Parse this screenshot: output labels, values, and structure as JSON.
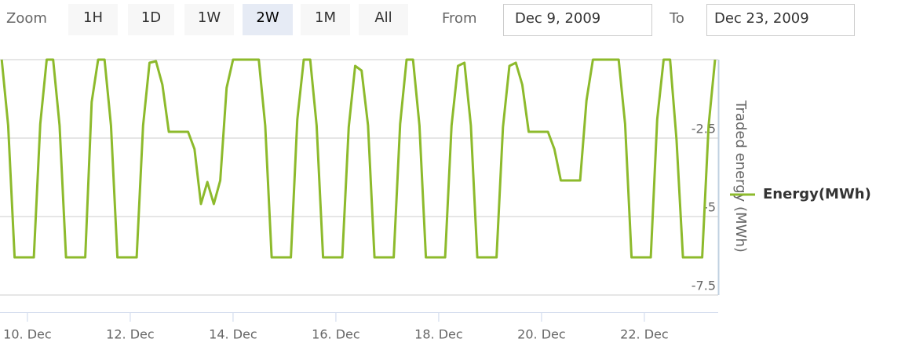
{
  "range_selector": {
    "label": "Zoom",
    "buttons": [
      "1H",
      "1D",
      "1W",
      "2W",
      "1M",
      "All"
    ],
    "selected": "2W",
    "from_label": "From",
    "from_value": "Dec 9, 2009",
    "to_label": "To",
    "to_value": "Dec 23, 2009"
  },
  "chart_data": {
    "type": "line",
    "x": [
      "2009-12-09T12:00",
      "2009-12-09T15:00",
      "2009-12-09T18:00",
      "2009-12-10T03:00",
      "2009-12-10T06:00",
      "2009-12-10T09:00",
      "2009-12-10T12:00",
      "2009-12-10T15:00",
      "2009-12-10T18:00",
      "2009-12-11T03:00",
      "2009-12-11T06:00",
      "2009-12-11T09:00",
      "2009-12-11T12:00",
      "2009-12-11T15:00",
      "2009-12-11T18:00",
      "2009-12-12T03:00",
      "2009-12-12T06:00",
      "2009-12-12T09:00",
      "2009-12-12T12:00",
      "2009-12-12T15:00",
      "2009-12-12T18:00",
      "2009-12-13T03:00",
      "2009-12-13T06:00",
      "2009-12-13T09:00",
      "2009-12-13T12:00",
      "2009-12-13T15:00",
      "2009-12-13T18:00",
      "2009-12-13T21:00",
      "2009-12-14T00:00",
      "2009-12-14T12:00",
      "2009-12-14T15:00",
      "2009-12-14T18:00",
      "2009-12-15T03:00",
      "2009-12-15T06:00",
      "2009-12-15T09:00",
      "2009-12-15T12:00",
      "2009-12-15T15:00",
      "2009-12-15T18:00",
      "2009-12-16T03:00",
      "2009-12-16T06:00",
      "2009-12-16T09:00",
      "2009-12-16T12:00",
      "2009-12-16T15:00",
      "2009-12-16T18:00",
      "2009-12-17T03:00",
      "2009-12-17T06:00",
      "2009-12-17T09:00",
      "2009-12-17T12:00",
      "2009-12-17T15:00",
      "2009-12-17T18:00",
      "2009-12-18T03:00",
      "2009-12-18T06:00",
      "2009-12-18T09:00",
      "2009-12-18T12:00",
      "2009-12-18T15:00",
      "2009-12-18T18:00",
      "2009-12-19T03:00",
      "2009-12-19T06:00",
      "2009-12-19T09:00",
      "2009-12-19T12:00",
      "2009-12-19T15:00",
      "2009-12-19T18:00",
      "2009-12-20T03:00",
      "2009-12-20T06:00",
      "2009-12-20T09:00",
      "2009-12-20T18:00",
      "2009-12-20T21:00",
      "2009-12-21T00:00",
      "2009-12-21T12:00",
      "2009-12-21T15:00",
      "2009-12-21T18:00",
      "2009-12-22T03:00",
      "2009-12-22T06:00",
      "2009-12-22T09:00",
      "2009-12-22T12:00",
      "2009-12-22T15:00",
      "2009-12-22T18:00",
      "2009-12-23T03:00",
      "2009-12-23T06:00",
      "2009-12-23T09:00"
    ],
    "series": [
      {
        "name": "Energy(MWh)",
        "color": "#8dba2c",
        "values": [
          0,
          -2.1,
          -6.3,
          -6.3,
          -2.05,
          0,
          0,
          -2.1,
          -6.3,
          -6.3,
          -1.35,
          0,
          0,
          -2.1,
          -6.3,
          -6.3,
          -2.1,
          -0.1,
          -0.05,
          -0.8,
          -2.3,
          -2.3,
          -2.85,
          -4.6,
          -3.9,
          -4.6,
          -3.85,
          -0.9,
          0,
          0,
          -2.1,
          -6.3,
          -6.3,
          -1.9,
          0,
          0,
          -2.1,
          -6.3,
          -6.3,
          -2.15,
          -0.2,
          -0.35,
          -2.1,
          -6.3,
          -6.3,
          -2.05,
          0,
          0,
          -2.1,
          -6.3,
          -6.3,
          -2.1,
          -0.2,
          -0.1,
          -2.1,
          -6.3,
          -6.3,
          -2.15,
          -0.2,
          -0.1,
          -0.8,
          -2.3,
          -2.3,
          -2.85,
          -3.85,
          -3.85,
          -1.3,
          0,
          0,
          -2.05,
          -6.3,
          -6.3,
          -1.9,
          0,
          0,
          -2.55,
          -6.3,
          -6.3,
          -2.1,
          0
        ]
      }
    ],
    "yaxis_title": "Traded energy (MWh)",
    "xlim": [
      "2009-12-09T11:12",
      "2009-12-23T10:28"
    ],
    "xticks": [
      {
        "value": "2009-12-10T00:00",
        "label": "10. Dec"
      },
      {
        "value": "2009-12-12T00:00",
        "label": "12. Dec"
      },
      {
        "value": "2009-12-14T00:00",
        "label": "14. Dec"
      },
      {
        "value": "2009-12-16T00:00",
        "label": "16. Dec"
      },
      {
        "value": "2009-12-18T00:00",
        "label": "18. Dec"
      },
      {
        "value": "2009-12-20T00:00",
        "label": "20. Dec"
      },
      {
        "value": "2009-12-22T00:00",
        "label": "22. Dec"
      }
    ],
    "ylim": [
      -7.5,
      0
    ],
    "yticks": [
      -7.5,
      -5,
      -2.5
    ],
    "grid": true,
    "legend": "right"
  }
}
